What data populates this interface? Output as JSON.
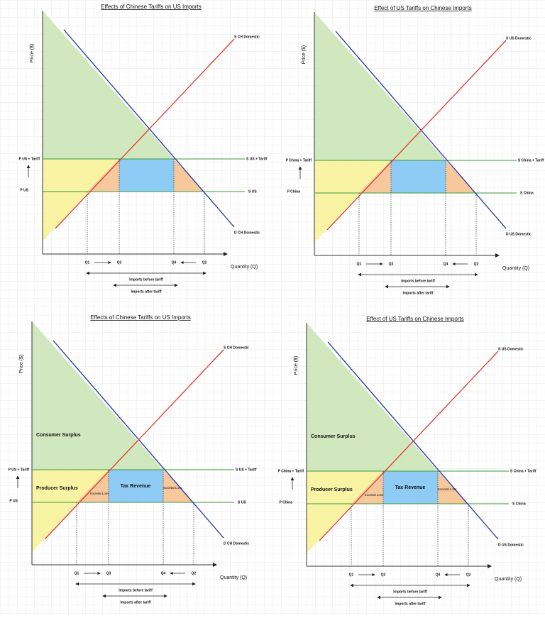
{
  "panels": [
    {
      "title": "Effects of Chinese Tariffs on US Imports",
      "y_axis_label": "Price ($)",
      "x_axis_label": "Quantity (Q)",
      "supply_label": "S CH Domestic",
      "demand_label": "D CH Domestic",
      "tariff_supply_label": "S US + Tariff",
      "world_supply_label": "S US",
      "tariff_price_label": "P US + Tariff",
      "world_price_label": "P US",
      "q_labels": [
        "Q1",
        "Q3",
        "Q4",
        "Q2"
      ],
      "imports_before": "Imports before tariff",
      "imports_after": "Imports after tariff"
    },
    {
      "title": "Effect of US Tariffs on Chinese Imports",
      "y_axis_label": "Price ($)",
      "x_axis_label": "Quantity (Q)",
      "supply_label": "S US Domestic",
      "demand_label": "D US Domestic",
      "tariff_supply_label": "S China + Tariff",
      "world_supply_label": "S China",
      "tariff_price_label": "P China + Tariff",
      "world_price_label": "P China",
      "q_labels": [
        "Q1",
        "Q3",
        "Q4",
        "Q2"
      ],
      "imports_before": "Imports before tariff",
      "imports_after": "Imports after tariff"
    },
    {
      "title": "Effects of Chinese Tariffs on US Imports",
      "y_axis_label": "Price ($)",
      "x_axis_label": "Quantity (Q)",
      "supply_label": "S CH Domestic",
      "demand_label": "D CH Domestic",
      "tariff_supply_label": "S US + Tariff",
      "world_supply_label": "S US",
      "tariff_price_label": "P US + Tariff",
      "world_price_label": "P US",
      "q_labels": [
        "Q1",
        "Q3",
        "Q4",
        "Q2"
      ],
      "imports_before": "Imports before tariff",
      "imports_after": "Imports after tariff",
      "area_labels": {
        "consumer_surplus": "Consumer Surplus",
        "producer_surplus": "Producer Surplus",
        "tax_revenue": "Tax Revenue",
        "societal_loss_left": "Societal Loss",
        "societal_loss_right": "Societal Loss"
      }
    },
    {
      "title": "Effect of US Tariffs on Chinese Imports",
      "y_axis_label": "Price ($)",
      "x_axis_label": "Quantity (Q)",
      "supply_label": "S US Domestic",
      "demand_label": "D US Domestic",
      "tariff_supply_label": "S China + Tariff",
      "world_supply_label": "S China",
      "tariff_price_label": "P China + Tariff",
      "world_price_label": "P China",
      "q_labels": [
        "Q1",
        "Q3",
        "Q4",
        "Q2"
      ],
      "imports_before": "Imports before tariff",
      "imports_after": "Imports after tariff",
      "area_labels": {
        "consumer_surplus": "Consumer Surplus",
        "producer_surplus": "Producer Surplus",
        "tax_revenue": "Tax Revenue",
        "societal_loss_left": "Societal Loss",
        "societal_loss_right": "Societal Loss"
      }
    }
  ]
}
